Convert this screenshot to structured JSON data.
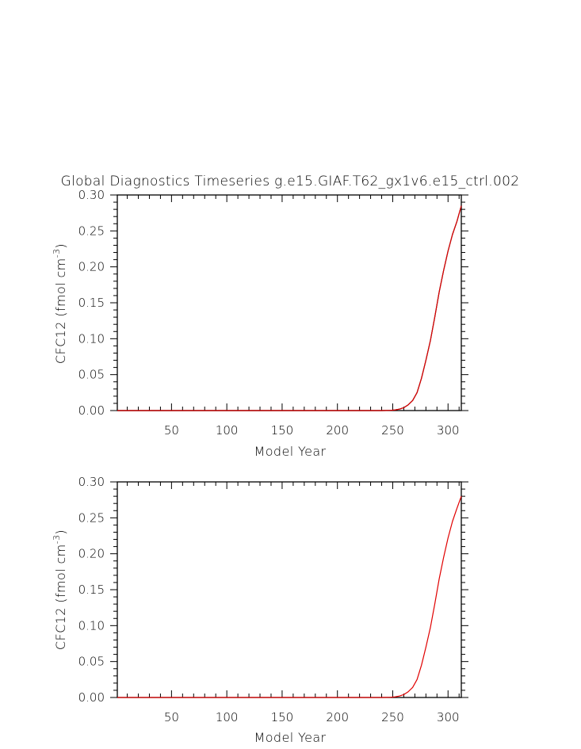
{
  "chart_data": [
    {
      "type": "line",
      "title": "Global Diagnostics Timeseries g.e15.GIAF.T62_gx1v6.e15_ctrl.002",
      "xlabel": "Model Year",
      "ylabel": "CFC12 (fmol cm",
      "ylabel_sup": "-3",
      "ylabel_close": ")",
      "xlim": [
        1,
        312
      ],
      "ylim": [
        0.0,
        0.3
      ],
      "xticks": [
        50,
        100,
        150,
        200,
        250,
        300
      ],
      "xtick_labels": [
        "50",
        "100",
        "150",
        "200",
        "250",
        "300"
      ],
      "yticks": [
        0.0,
        0.05,
        0.1,
        0.15,
        0.2,
        0.25,
        0.3
      ],
      "ytick_labels": [
        "0.00",
        "0.05",
        "0.10",
        "0.15",
        "0.20",
        "0.25",
        "0.30"
      ],
      "grid": false,
      "series": [
        {
          "color": "#000000",
          "x": [
            1,
            240,
            248,
            252,
            256,
            260,
            264,
            268,
            272,
            276,
            280,
            284,
            288,
            292,
            296,
            300,
            304,
            308,
            312
          ],
          "y": [
            0.0,
            0.0,
            0.0003,
            0.0008,
            0.002,
            0.004,
            0.008,
            0.014,
            0.025,
            0.045,
            0.07,
            0.097,
            0.13,
            0.165,
            0.195,
            0.222,
            0.245,
            0.263,
            0.285
          ]
        },
        {
          "color": "#e00000",
          "x": [
            1,
            240,
            248,
            252,
            256,
            260,
            264,
            268,
            272,
            276,
            280,
            284,
            288,
            292,
            296,
            300,
            304,
            308,
            312
          ],
          "y": [
            0.0,
            0.0,
            0.0003,
            0.0008,
            0.002,
            0.004,
            0.008,
            0.014,
            0.025,
            0.045,
            0.07,
            0.097,
            0.13,
            0.165,
            0.195,
            0.222,
            0.245,
            0.263,
            0.285
          ]
        }
      ]
    },
    {
      "type": "line",
      "title": "",
      "xlabel": "Model Year",
      "ylabel": "CFC12 (fmol cm",
      "ylabel_sup": "-3",
      "ylabel_close": ")",
      "xlim": [
        1,
        312
      ],
      "ylim": [
        0.0,
        0.3
      ],
      "xticks": [
        50,
        100,
        150,
        200,
        250,
        300
      ],
      "xtick_labels": [
        "50",
        "100",
        "150",
        "200",
        "250",
        "300"
      ],
      "yticks": [
        0.0,
        0.05,
        0.1,
        0.15,
        0.2,
        0.25,
        0.3
      ],
      "ytick_labels": [
        "0.00",
        "0.05",
        "0.10",
        "0.15",
        "0.20",
        "0.25",
        "0.30"
      ],
      "grid": false,
      "series": [
        {
          "color": "#e00000",
          "x": [
            1,
            240,
            248,
            252,
            256,
            260,
            264,
            268,
            272,
            276,
            280,
            284,
            288,
            292,
            296,
            300,
            304,
            308,
            312
          ],
          "y": [
            0.0,
            0.0,
            0.0003,
            0.0008,
            0.002,
            0.004,
            0.008,
            0.014,
            0.025,
            0.045,
            0.07,
            0.097,
            0.13,
            0.165,
            0.195,
            0.222,
            0.245,
            0.263,
            0.28
          ]
        }
      ]
    }
  ]
}
